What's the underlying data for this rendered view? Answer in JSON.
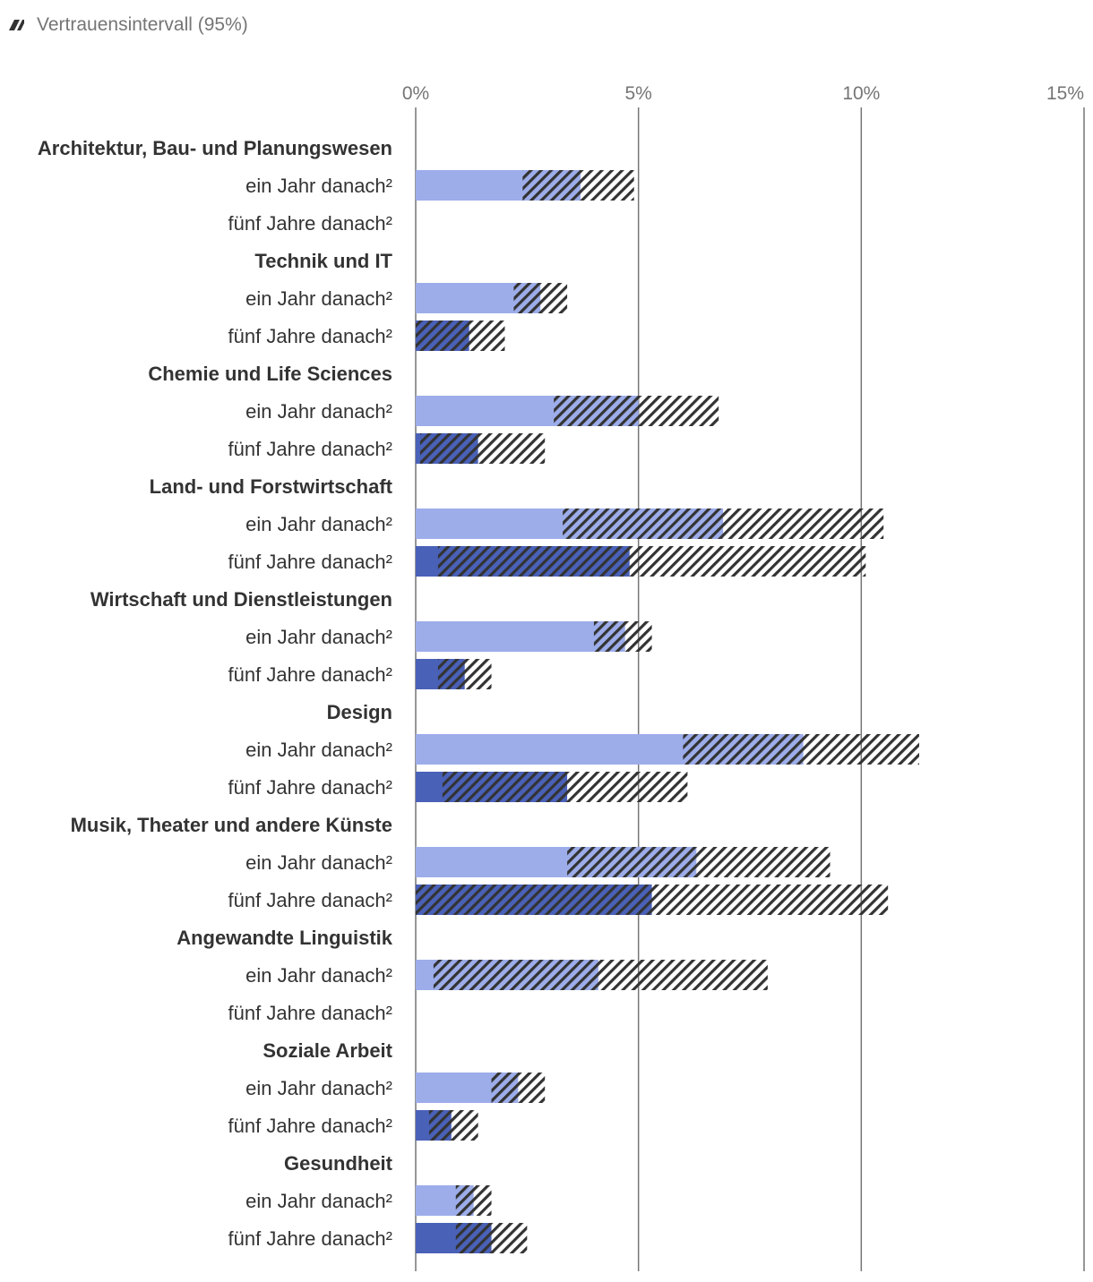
{
  "legend": {
    "ci_label": "Vertrauensintervall (95%)",
    "ci_icon": "hatched-square-icon"
  },
  "chart_data": {
    "type": "bar",
    "orientation": "horizontal",
    "xlim": [
      0,
      15
    ],
    "ticks": [
      "0%",
      "5%",
      "10%",
      "15%"
    ],
    "tick_values": [
      0,
      5,
      10,
      15
    ],
    "colors": {
      "ein Jahr danach²": "#9dadea",
      "fünf Jahre danach²": "#4a61b8",
      "hatch": "#333333",
      "grid": "#757575"
    },
    "groups": [
      {
        "name": "Architektur, Bau- und Planungswesen",
        "rows": [
          {
            "label": "ein Jahr danach²",
            "value": 3.7,
            "ci": [
              2.4,
              4.9
            ]
          },
          {
            "label": "fünf Jahre danach²",
            "value": null,
            "ci": null
          }
        ]
      },
      {
        "name": "Technik und IT",
        "rows": [
          {
            "label": "ein Jahr danach²",
            "value": 2.8,
            "ci": [
              2.2,
              3.4
            ]
          },
          {
            "label": "fünf Jahre danach²",
            "value": 1.2,
            "ci": [
              0.0,
              2.0
            ]
          }
        ]
      },
      {
        "name": "Chemie und Life Sciences",
        "rows": [
          {
            "label": "ein Jahr danach²",
            "value": 5.0,
            "ci": [
              3.1,
              6.8
            ]
          },
          {
            "label": "fünf Jahre danach²",
            "value": 1.4,
            "ci": [
              0.1,
              2.9
            ]
          }
        ]
      },
      {
        "name": "Land- und Forstwirtschaft",
        "rows": [
          {
            "label": "ein Jahr danach²",
            "value": 6.9,
            "ci": [
              3.3,
              10.5
            ]
          },
          {
            "label": "fünf Jahre danach²",
            "value": 4.8,
            "ci": [
              0.5,
              10.1
            ]
          }
        ]
      },
      {
        "name": "Wirtschaft und Dienstleistungen",
        "rows": [
          {
            "label": "ein Jahr danach²",
            "value": 4.7,
            "ci": [
              4.0,
              5.3
            ]
          },
          {
            "label": "fünf Jahre danach²",
            "value": 1.1,
            "ci": [
              0.5,
              1.7
            ]
          }
        ]
      },
      {
        "name": "Design",
        "rows": [
          {
            "label": "ein Jahr danach²",
            "value": 8.7,
            "ci": [
              6.0,
              11.3
            ]
          },
          {
            "label": "fünf Jahre danach²",
            "value": 3.4,
            "ci": [
              0.6,
              6.1
            ]
          }
        ]
      },
      {
        "name": "Musik, Theater und andere Künste",
        "rows": [
          {
            "label": "ein Jahr danach²",
            "value": 6.3,
            "ci": [
              3.4,
              9.3
            ]
          },
          {
            "label": "fünf Jahre danach²",
            "value": 5.3,
            "ci": [
              0.0,
              10.6
            ]
          }
        ]
      },
      {
        "name": "Angewandte Linguistik",
        "rows": [
          {
            "label": "ein Jahr danach²",
            "value": 4.1,
            "ci": [
              0.4,
              7.9
            ]
          },
          {
            "label": "fünf Jahre danach²",
            "value": null,
            "ci": null
          }
        ]
      },
      {
        "name": "Soziale Arbeit",
        "rows": [
          {
            "label": "ein Jahr danach²",
            "value": 2.3,
            "ci": [
              1.7,
              2.9
            ]
          },
          {
            "label": "fünf Jahre danach²",
            "value": 0.8,
            "ci": [
              0.3,
              1.4
            ]
          }
        ]
      },
      {
        "name": "Gesundheit",
        "rows": [
          {
            "label": "ein Jahr danach²",
            "value": 1.3,
            "ci": [
              0.9,
              1.7
            ]
          },
          {
            "label": "fünf Jahre danach²",
            "value": 1.7,
            "ci": [
              0.9,
              2.5
            ]
          }
        ]
      }
    ]
  }
}
